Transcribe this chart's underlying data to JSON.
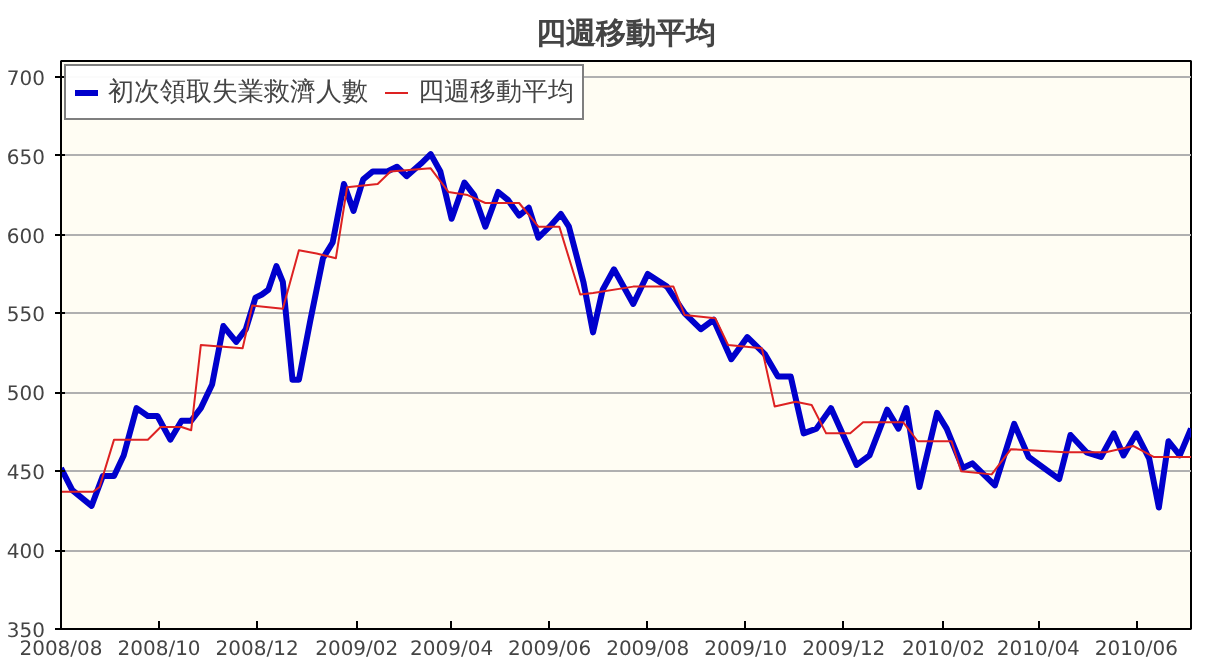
{
  "chart_data": {
    "type": "line",
    "title": "四週移動平均",
    "xlim": [
      "2008-08-01",
      "2010-07-05"
    ],
    "xticks": [
      {
        "value": "2008-08-01",
        "label": "2008/08"
      },
      {
        "value": "2008-10-01",
        "label": "2008/10"
      },
      {
        "value": "2008-12-01",
        "label": "2008/12"
      },
      {
        "value": "2009-02-01",
        "label": "2009/02"
      },
      {
        "value": "2009-04-01",
        "label": "2009/04"
      },
      {
        "value": "2009-06-01",
        "label": "2009/06"
      },
      {
        "value": "2009-08-01",
        "label": "2009/08"
      },
      {
        "value": "2009-10-01",
        "label": "2009/10"
      },
      {
        "value": "2009-12-01",
        "label": "2009/12"
      },
      {
        "value": "2010-02-01",
        "label": "2010/02"
      },
      {
        "value": "2010-04-01",
        "label": "2010/04"
      },
      {
        "value": "2010-06-01",
        "label": "2010/06"
      }
    ],
    "ylim": [
      350,
      710
    ],
    "yticks": [
      350,
      400,
      450,
      500,
      550,
      600,
      650,
      700
    ],
    "grid": "y",
    "legend": "top left",
    "marker": "none",
    "line_style": "solid",
    "series": [
      {
        "name": "初次領取失業救濟人數",
        "color": "#0000cc",
        "x": [
          "2008-08-01",
          "2008-08-08",
          "2008-08-20",
          "2008-08-27",
          "2008-09-03",
          "2008-09-09",
          "2008-09-17",
          "2008-09-24",
          "2008-09-30",
          "2008-10-08",
          "2008-10-15",
          "2008-10-21",
          "2008-10-27",
          "2008-11-03",
          "2008-11-10",
          "2008-11-18",
          "2008-11-24",
          "2008-11-30",
          "2008-12-04",
          "2008-12-08",
          "2008-12-13",
          "2008-12-17",
          "2008-12-23",
          "2008-12-27",
          "2009-01-03",
          "2009-01-11",
          "2009-01-17",
          "2009-01-24",
          "2009-01-30",
          "2009-02-05",
          "2009-02-11",
          "2009-02-20",
          "2009-02-26",
          "2009-03-04",
          "2009-03-13",
          "2009-03-19",
          "2009-03-25",
          "2009-04-01",
          "2009-04-09",
          "2009-04-15",
          "2009-04-22",
          "2009-04-30",
          "2009-05-06",
          "2009-05-13",
          "2009-05-19",
          "2009-05-25",
          "2009-06-01",
          "2009-06-08",
          "2009-06-13",
          "2009-06-22",
          "2009-06-28",
          "2009-07-04",
          "2009-07-11",
          "2009-07-23",
          "2009-08-01",
          "2009-08-13",
          "2009-08-24",
          "2009-09-03",
          "2009-09-11",
          "2009-09-22",
          "2009-10-02",
          "2009-10-13",
          "2009-10-21",
          "2009-10-29",
          "2009-11-06",
          "2009-11-14",
          "2009-11-23",
          "2009-12-09",
          "2009-12-17",
          "2009-12-28",
          "2010-01-04",
          "2010-01-09",
          "2010-01-17",
          "2010-01-28",
          "2010-02-03",
          "2010-02-13",
          "2010-02-19",
          "2010-03-05",
          "2010-03-17",
          "2010-03-26",
          "2010-04-14",
          "2010-04-21",
          "2010-05-01",
          "2010-05-10",
          "2010-05-18",
          "2010-05-24",
          "2010-06-01",
          "2010-06-09",
          "2010-06-15",
          "2010-06-21",
          "2010-06-28",
          "2010-07-05"
        ],
        "values": [
          452,
          438,
          428,
          447,
          447,
          460,
          490,
          485,
          485,
          470,
          482,
          482,
          490,
          505,
          542,
          532,
          540,
          560,
          562,
          565,
          580,
          570,
          508,
          508,
          545,
          585,
          595,
          632,
          615,
          635,
          640,
          640,
          643,
          637,
          645,
          651,
          640,
          610,
          633,
          625,
          605,
          627,
          622,
          612,
          617,
          598,
          605,
          613,
          605,
          570,
          538,
          565,
          578,
          556,
          575,
          567,
          550,
          540,
          546,
          521,
          535,
          524,
          510,
          510,
          474,
          477,
          490,
          454,
          460,
          489,
          477,
          490,
          440,
          487,
          477,
          452,
          455,
          441,
          480,
          459,
          445,
          473,
          462,
          459,
          474,
          460,
          474,
          458,
          427,
          469,
          460,
          477
        ]
      },
      {
        "name": "四週移動平均",
        "color": "#dd2222",
        "x": [
          "2008-08-01",
          "2008-08-21",
          "2008-08-25",
          "2008-09-03",
          "2008-09-24",
          "2008-10-02",
          "2008-10-15",
          "2008-10-21",
          "2008-10-27",
          "2008-11-22",
          "2008-11-28",
          "2008-12-17",
          "2008-12-27",
          "2009-01-07",
          "2009-01-19",
          "2009-01-26",
          "2009-02-14",
          "2009-02-22",
          "2009-03-19",
          "2009-03-30",
          "2009-04-11",
          "2009-04-22",
          "2009-05-13",
          "2009-05-25",
          "2009-06-07",
          "2009-06-20",
          "2009-06-28",
          "2009-07-23",
          "2009-08-17",
          "2009-08-24",
          "2009-09-12",
          "2009-09-20",
          "2009-10-11",
          "2009-10-19",
          "2009-11-01",
          "2009-11-11",
          "2009-11-20",
          "2009-12-05",
          "2009-12-13",
          "2010-01-07",
          "2010-01-16",
          "2010-02-06",
          "2010-02-12",
          "2010-03-03",
          "2010-03-15",
          "2010-04-18",
          "2010-05-13",
          "2010-05-30",
          "2010-06-12",
          "2010-07-05"
        ],
        "values": [
          437,
          437,
          440,
          470,
          470,
          478,
          478,
          476,
          530,
          528,
          555,
          553,
          590,
          588,
          585,
          630,
          632,
          640,
          642,
          627,
          625,
          620,
          620,
          605,
          605,
          562,
          563,
          567,
          567,
          549,
          547,
          530,
          528,
          491,
          494,
          492,
          474,
          474,
          481,
          481,
          469,
          469,
          450,
          448,
          464,
          462,
          462,
          466,
          459,
          459
        ]
      }
    ]
  }
}
